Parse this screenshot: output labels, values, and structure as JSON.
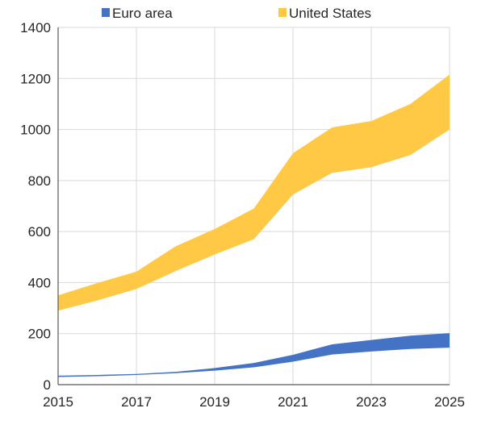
{
  "chart_data": {
    "type": "area",
    "subtype": "range-band",
    "title": "",
    "xlabel": "",
    "ylabel": "",
    "x": [
      2015,
      2016,
      2017,
      2018,
      2019,
      2020,
      2021,
      2022,
      2023,
      2024,
      2025
    ],
    "xticks": [
      "2015",
      "2017",
      "2019",
      "2021",
      "2023",
      "2025"
    ],
    "yticks": [
      "0",
      "200",
      "400",
      "600",
      "800",
      "1000",
      "1200",
      "1400"
    ],
    "xlim": [
      2015,
      2025
    ],
    "ylim": [
      0,
      1400
    ],
    "grid": true,
    "legend_position": "top",
    "series": [
      {
        "name": "Euro area",
        "color": "#4472c4",
        "lower": [
          30,
          33,
          38,
          45,
          55,
          68,
          90,
          118,
          130,
          140,
          145
        ],
        "upper": [
          35,
          38,
          42,
          50,
          65,
          85,
          117,
          158,
          175,
          192,
          202
        ]
      },
      {
        "name": "United States",
        "color": "#ffc845",
        "lower": [
          290,
          330,
          375,
          445,
          510,
          570,
          745,
          830,
          852,
          900,
          1000
        ],
        "upper": [
          350,
          398,
          443,
          542,
          610,
          690,
          907,
          1008,
          1033,
          1100,
          1215
        ]
      }
    ]
  }
}
